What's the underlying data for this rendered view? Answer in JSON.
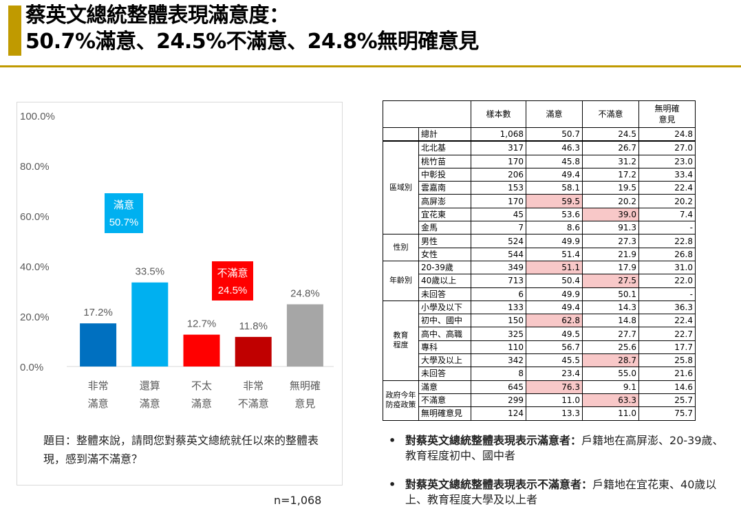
{
  "title": {
    "line1": "蔡英文總統整體表現滿意度：",
    "line2": "50.7%滿意、24.5%不滿意、24.8%無明確意見"
  },
  "colors": {
    "accent": "#c09a00",
    "highlight": "#f8c8c8"
  },
  "chart_data": {
    "type": "bar",
    "categories": [
      [
        "非常",
        "滿意"
      ],
      [
        "還算",
        "滿意"
      ],
      [
        "不太",
        "滿意"
      ],
      [
        "非常",
        "不滿意"
      ],
      [
        "無明確",
        "意見"
      ]
    ],
    "values": [
      17.2,
      33.5,
      12.7,
      11.8,
      24.8
    ],
    "value_labels": [
      "17.2%",
      "33.5%",
      "12.7%",
      "11.8%",
      "24.8%"
    ],
    "bar_colors": [
      "#0070c0",
      "#00b0f0",
      "#ff0000",
      "#c00000",
      "#a6a6a6"
    ],
    "ylim": [
      0,
      100
    ],
    "yticks": [
      "0.0%",
      "20.0%",
      "40.0%",
      "60.0%",
      "80.0%",
      "100.0%"
    ],
    "grid": false,
    "annotations": [
      {
        "line1": "滿意",
        "line2": "50.7%",
        "color": "#00b0f0"
      },
      {
        "line1": "不滿意",
        "line2": "24.5%",
        "color": "#ff0000"
      }
    ]
  },
  "question": "題目：整體來說，請問您對蔡英文總統就任以來的整體表現，感到滿不滿意？",
  "sample": "n=1,068",
  "table": {
    "headers": [
      "樣本數",
      "滿意",
      "不滿意",
      "無明確\n意見"
    ],
    "total": {
      "label": "總計",
      "n": "1,068",
      "sat": "50.7",
      "dis": "24.5",
      "none": "24.8"
    },
    "groups": [
      {
        "label": "區域別",
        "rows": [
          {
            "label": "北北基",
            "n": "317",
            "sat": "46.3",
            "dis": "26.7",
            "none": "27.0"
          },
          {
            "label": "桃竹苗",
            "n": "170",
            "sat": "45.8",
            "dis": "31.2",
            "none": "23.0"
          },
          {
            "label": "中彰投",
            "n": "206",
            "sat": "49.4",
            "dis": "17.2",
            "none": "33.4"
          },
          {
            "label": "雲嘉南",
            "n": "153",
            "sat": "58.1",
            "dis": "19.5",
            "none": "22.4"
          },
          {
            "label": "高屏澎",
            "n": "170",
            "sat": "59.5",
            "dis": "20.2",
            "none": "20.2",
            "hl": [
              "sat"
            ]
          },
          {
            "label": "宜花東",
            "n": "45",
            "sat": "53.6",
            "dis": "39.0",
            "none": "7.4",
            "hl": [
              "dis"
            ]
          },
          {
            "label": "金馬",
            "n": "7",
            "sat": "8.6",
            "dis": "91.3",
            "none": "-"
          }
        ]
      },
      {
        "label": "性別",
        "rows": [
          {
            "label": "男性",
            "n": "524",
            "sat": "49.9",
            "dis": "27.3",
            "none": "22.8"
          },
          {
            "label": "女性",
            "n": "544",
            "sat": "51.4",
            "dis": "21.9",
            "none": "26.8"
          }
        ]
      },
      {
        "label": "年齡別",
        "rows": [
          {
            "label": "20-39歲",
            "n": "349",
            "sat": "51.1",
            "dis": "17.9",
            "none": "31.0",
            "hl": [
              "sat"
            ]
          },
          {
            "label": "40歲以上",
            "n": "713",
            "sat": "50.4",
            "dis": "27.5",
            "none": "22.0",
            "hl": [
              "dis"
            ]
          },
          {
            "label": "未回答",
            "n": "6",
            "sat": "49.9",
            "dis": "50.1",
            "none": "-"
          }
        ]
      },
      {
        "label": "教育\n程度",
        "rows": [
          {
            "label": "小學及以下",
            "n": "133",
            "sat": "49.4",
            "dis": "14.3",
            "none": "36.3"
          },
          {
            "label": "初中、國中",
            "n": "150",
            "sat": "62.8",
            "dis": "14.8",
            "none": "22.4",
            "hl": [
              "sat"
            ]
          },
          {
            "label": "高中、高職",
            "n": "325",
            "sat": "49.5",
            "dis": "27.7",
            "none": "22.7"
          },
          {
            "label": "專科",
            "n": "110",
            "sat": "56.7",
            "dis": "25.6",
            "none": "17.7"
          },
          {
            "label": "大學及以上",
            "n": "342",
            "sat": "45.5",
            "dis": "28.7",
            "none": "25.8",
            "hl": [
              "dis"
            ]
          },
          {
            "label": "未回答",
            "n": "8",
            "sat": "23.4",
            "dis": "55.0",
            "none": "21.6"
          }
        ]
      },
      {
        "label": "政府今年\n防疫政策",
        "rows": [
          {
            "label": "滿意",
            "n": "645",
            "sat": "76.3",
            "dis": "9.1",
            "none": "14.6",
            "hl": [
              "sat"
            ]
          },
          {
            "label": "不滿意",
            "n": "299",
            "sat": "11.0",
            "dis": "63.3",
            "none": "25.7",
            "hl": [
              "dis"
            ]
          },
          {
            "label": "無明確意見",
            "n": "124",
            "sat": "13.3",
            "dis": "11.0",
            "none": "75.7"
          }
        ]
      }
    ]
  },
  "notes": [
    {
      "bold": "對蔡英文總統整體表現表示滿意者：",
      "text": "戶籍地在高屏澎、20-39歲、教育程度初中、國中者"
    },
    {
      "bold": "對蔡英文總統整體表現表示不滿意者：",
      "text": "戶籍地在宜花東、40歲以上、教育程度大學及以上者"
    }
  ]
}
